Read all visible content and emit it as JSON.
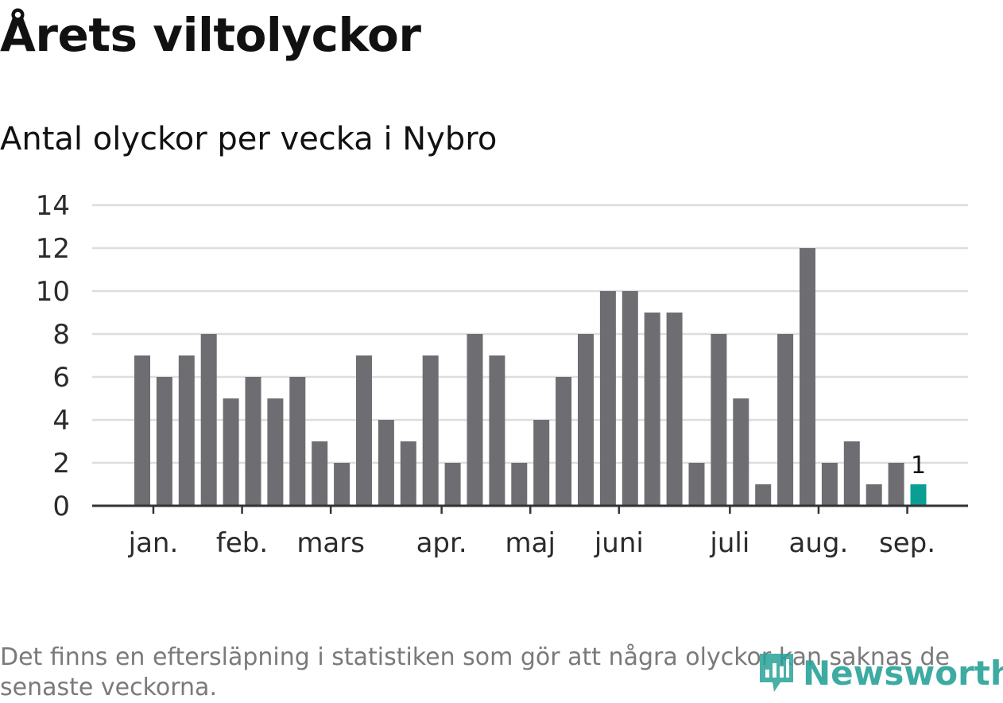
{
  "header": {
    "title": "Årets viltolyckor",
    "subtitle": "Antal olyckor per vecka i Nybro"
  },
  "footnote": "Det finns en eftersläpning i statistiken som gör att några olyckor kan saknas de senaste veckorna.",
  "brand": {
    "name": "Newsworthy",
    "logo_icon": "newsworthy-logo-icon",
    "color": "#2aa39a"
  },
  "colors": {
    "bar": "#6e6d72",
    "highlight": "#0b9f94",
    "grid": "#dddddd",
    "axis": "#333333"
  },
  "chart_data": {
    "type": "bar",
    "title": "Antal olyckor per vecka i Nybro",
    "xlabel": "",
    "ylabel": "",
    "ylim": [
      0,
      14
    ],
    "yticks": [
      "0",
      "2",
      "4",
      "6",
      "8",
      "10",
      "12",
      "14"
    ],
    "grid": true,
    "x_tick_labels": [
      {
        "label": "jan.",
        "week_index": 0.5
      },
      {
        "label": "feb.",
        "week_index": 4.5
      },
      {
        "label": "mars",
        "week_index": 8.5
      },
      {
        "label": "apr.",
        "week_index": 13.5
      },
      {
        "label": "maj",
        "week_index": 17.5
      },
      {
        "label": "juni",
        "week_index": 21.5
      },
      {
        "label": "juli",
        "week_index": 26.5
      },
      {
        "label": "aug.",
        "week_index": 30.5
      },
      {
        "label": "sep.",
        "week_index": 34.5
      }
    ],
    "values": [
      7,
      6,
      7,
      8,
      5,
      6,
      5,
      6,
      3,
      2,
      7,
      4,
      3,
      7,
      2,
      8,
      7,
      2,
      4,
      6,
      8,
      10,
      10,
      9,
      9,
      2,
      8,
      5,
      1,
      8,
      12,
      2,
      3,
      1,
      2,
      1
    ],
    "highlight_last": true,
    "last_label": "1"
  }
}
